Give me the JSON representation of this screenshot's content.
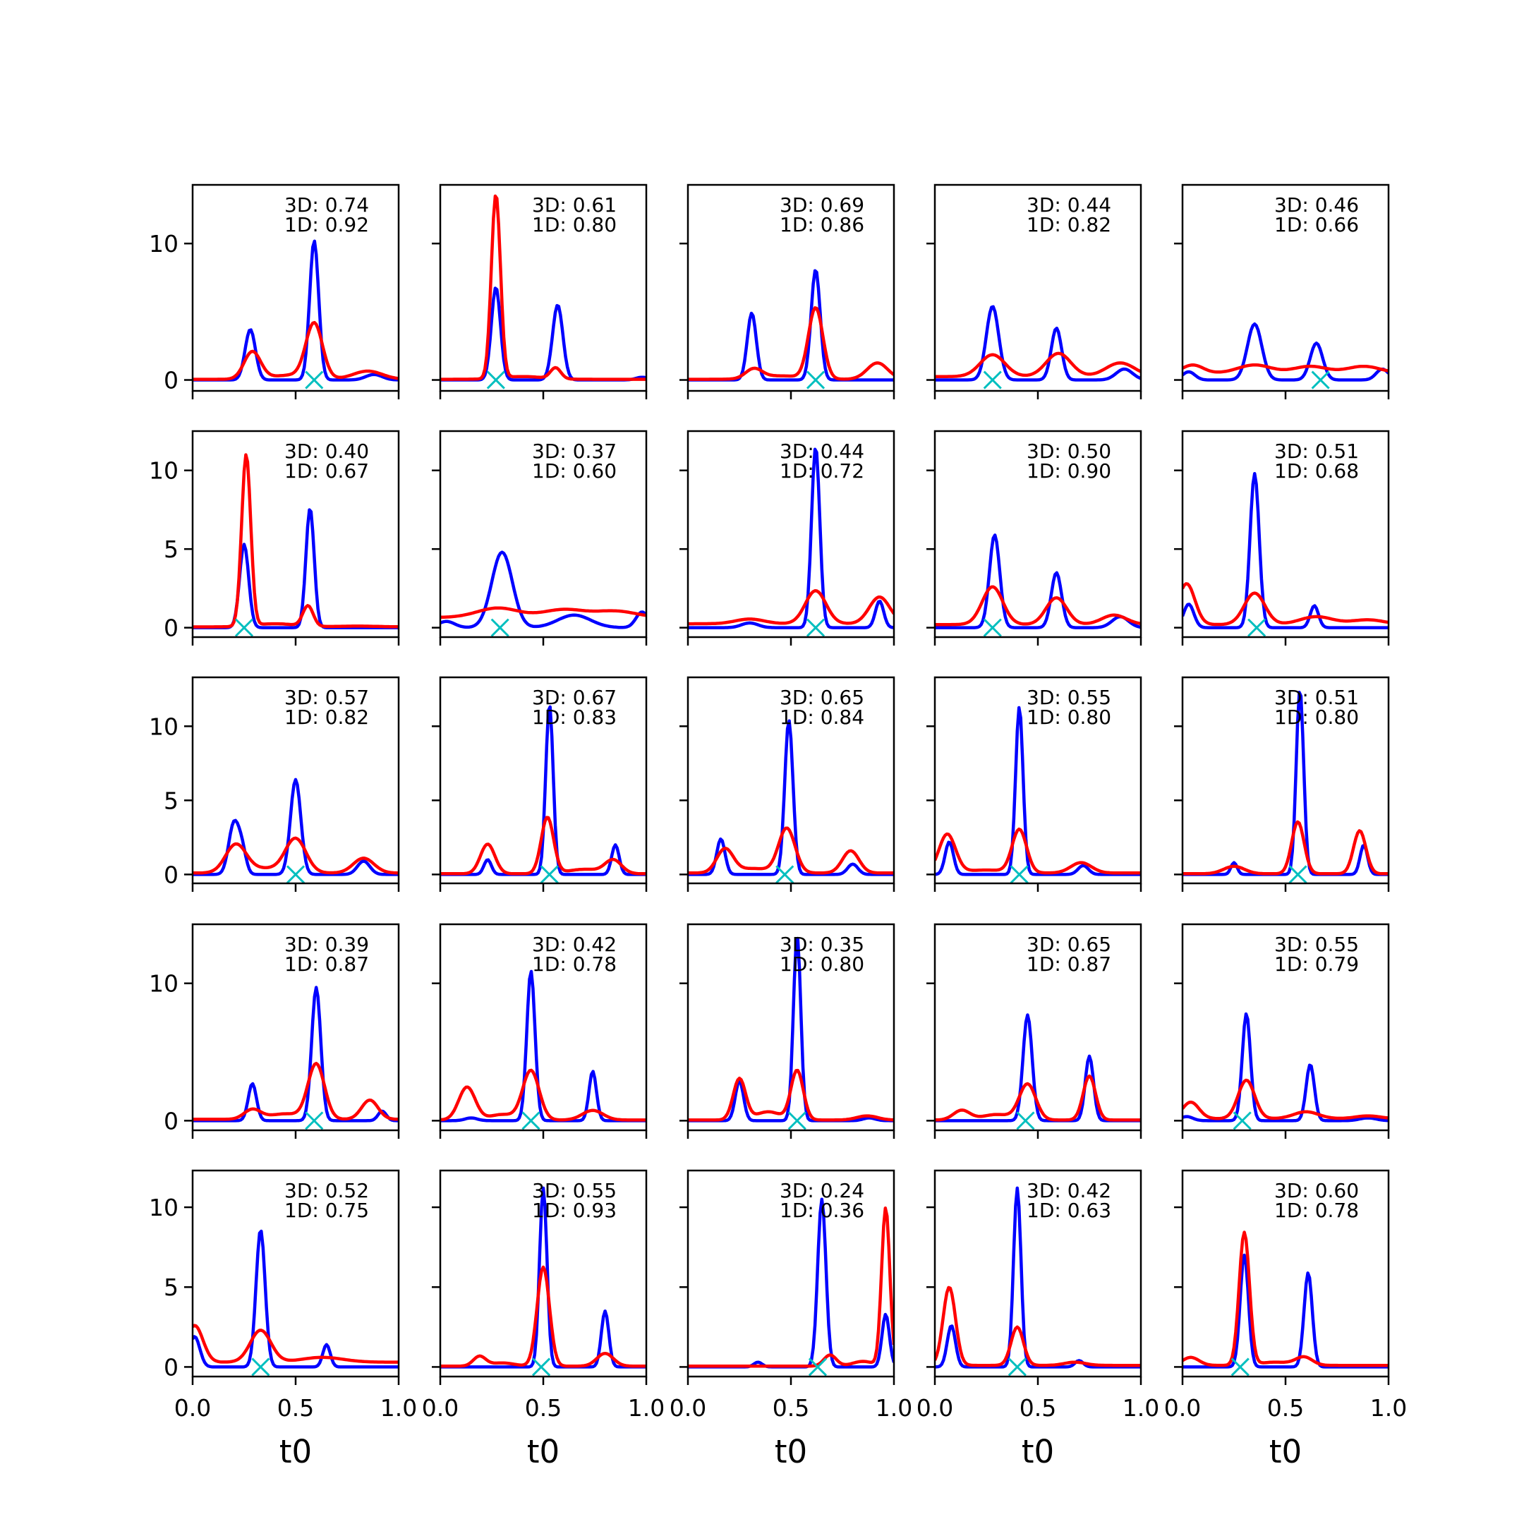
{
  "chart_data": {
    "type": "line",
    "layout": "5x5 grid of subplots",
    "shared_axes": {
      "xlabel": "t0",
      "xlim": [
        0,
        1
      ],
      "xticks": [
        "0.0",
        "0.5",
        "1.0"
      ],
      "ylabel": "",
      "grid": false,
      "legend": "none"
    },
    "rows": [
      {
        "ylim": [
          -0.8,
          14.3
        ],
        "yticks": [
          "0",
          "10"
        ],
        "ytick_values": [
          0,
          10
        ]
      },
      {
        "ylim": [
          -0.6,
          12.5
        ],
        "yticks": [
          "0",
          "5",
          "10"
        ],
        "ytick_values": [
          0,
          5,
          10
        ]
      },
      {
        "ylim": [
          -0.6,
          13.3
        ],
        "yticks": [
          "0",
          "5",
          "10"
        ],
        "ytick_values": [
          0,
          5,
          10
        ]
      },
      {
        "ylim": [
          -0.7,
          14.3
        ],
        "yticks": [
          "0",
          "10"
        ],
        "ytick_values": [
          0,
          10
        ]
      },
      {
        "ylim": [
          -0.6,
          12.3
        ],
        "yticks": [
          "0",
          "5",
          "10"
        ],
        "ytick_values": [
          0,
          5,
          10
        ]
      }
    ],
    "series_styles": {
      "3D": "#0000ff",
      "1D": "#ff0000",
      "marker": "#00bfbf"
    },
    "panels": [
      {
        "annotation": [
          "3D: 0.74",
          "1D: 0.92"
        ],
        "marker_x": 0.59,
        "blue": [
          [
            0.28,
            3.7,
            0.025
          ],
          [
            0.59,
            10.2,
            0.022
          ],
          [
            0.88,
            0.4,
            0.04
          ]
        ],
        "red": [
          [
            0.29,
            2.0,
            0.04
          ],
          [
            0.59,
            4.0,
            0.04
          ],
          [
            0.85,
            0.6,
            0.07
          ],
          [
            0.48,
            0.3,
            0.1
          ]
        ],
        "red_base": 0.05
      },
      {
        "annotation": [
          "3D: 0.61",
          "1D: 0.80"
        ],
        "marker_x": 0.27,
        "blue": [
          [
            0.27,
            6.8,
            0.022
          ],
          [
            0.57,
            5.5,
            0.025
          ],
          [
            0.98,
            0.2,
            0.03
          ]
        ],
        "red": [
          [
            0.27,
            13.5,
            0.022
          ],
          [
            0.56,
            0.8,
            0.025
          ],
          [
            0.4,
            0.2,
            0.1
          ]
        ],
        "red_base": 0.05
      },
      {
        "annotation": [
          "3D: 0.69",
          "1D: 0.86"
        ],
        "marker_x": 0.62,
        "blue": [
          [
            0.31,
            4.9,
            0.022
          ],
          [
            0.62,
            8.1,
            0.022
          ]
        ],
        "red": [
          [
            0.32,
            0.7,
            0.04
          ],
          [
            0.62,
            5.2,
            0.035
          ],
          [
            0.92,
            1.2,
            0.05
          ],
          [
            0.45,
            0.25,
            0.1
          ]
        ],
        "red_base": 0.05
      },
      {
        "annotation": [
          "3D: 0.44",
          "1D: 0.82"
        ],
        "marker_x": 0.28,
        "blue": [
          [
            0.28,
            5.4,
            0.03
          ],
          [
            0.59,
            3.8,
            0.025
          ],
          [
            0.92,
            0.8,
            0.04
          ]
        ],
        "red": [
          [
            0.28,
            1.6,
            0.06
          ],
          [
            0.6,
            1.7,
            0.06
          ],
          [
            0.9,
            1.0,
            0.07
          ]
        ],
        "red_base": 0.25
      },
      {
        "annotation": [
          "3D: 0.46",
          "1D: 0.66"
        ],
        "marker_x": 0.67,
        "blue": [
          [
            0.35,
            4.1,
            0.035
          ],
          [
            0.65,
            2.7,
            0.03
          ],
          [
            0.97,
            0.8,
            0.03
          ],
          [
            0.03,
            0.6,
            0.03
          ]
        ],
        "red": [
          [
            0.05,
            0.6,
            0.05
          ],
          [
            0.35,
            0.6,
            0.08
          ],
          [
            0.62,
            0.5,
            0.08
          ],
          [
            0.88,
            0.5,
            0.08
          ]
        ],
        "red_base": 0.5
      },
      {
        "annotation": [
          "3D: 0.40",
          "1D: 0.67"
        ],
        "marker_x": 0.25,
        "blue": [
          [
            0.25,
            5.3,
            0.022
          ],
          [
            0.57,
            7.6,
            0.02
          ]
        ],
        "red": [
          [
            0.26,
            10.9,
            0.022
          ],
          [
            0.56,
            1.3,
            0.025
          ],
          [
            0.4,
            0.2,
            0.1
          ],
          [
            0.8,
            0.05,
            0.1
          ]
        ],
        "red_base": 0.05
      },
      {
        "annotation": [
          "3D: 0.37",
          "1D: 0.60"
        ],
        "marker_x": 0.29,
        "blue": [
          [
            0.3,
            4.8,
            0.05
          ],
          [
            0.65,
            0.8,
            0.08
          ],
          [
            0.98,
            1.0,
            0.03
          ],
          [
            0.03,
            0.4,
            0.04
          ]
        ],
        "red": [
          [
            0.28,
            0.6,
            0.1
          ],
          [
            0.6,
            0.5,
            0.1
          ],
          [
            0.85,
            0.4,
            0.1
          ]
        ],
        "red_base": 0.65
      },
      {
        "annotation": [
          "3D: 0.44",
          "1D: 0.72"
        ],
        "marker_x": 0.62,
        "blue": [
          [
            0.62,
            11.5,
            0.02
          ],
          [
            0.93,
            1.7,
            0.02
          ],
          [
            0.3,
            0.3,
            0.04
          ]
        ],
        "red": [
          [
            0.62,
            2.1,
            0.05
          ],
          [
            0.93,
            1.7,
            0.05
          ],
          [
            0.3,
            0.3,
            0.07
          ]
        ],
        "red_base": 0.25
      },
      {
        "annotation": [
          "3D: 0.50",
          "1D: 0.90"
        ],
        "marker_x": 0.28,
        "blue": [
          [
            0.29,
            5.9,
            0.025
          ],
          [
            0.59,
            3.5,
            0.025
          ],
          [
            0.9,
            0.7,
            0.04
          ]
        ],
        "red": [
          [
            0.28,
            2.4,
            0.05
          ],
          [
            0.59,
            1.7,
            0.05
          ],
          [
            0.87,
            0.6,
            0.06
          ]
        ],
        "red_base": 0.2
      },
      {
        "annotation": [
          "3D: 0.51",
          "1D: 0.68"
        ],
        "marker_x": 0.36,
        "blue": [
          [
            0.35,
            9.8,
            0.022
          ],
          [
            0.64,
            1.4,
            0.02
          ],
          [
            0.03,
            1.5,
            0.025
          ]
        ],
        "red": [
          [
            0.02,
            2.6,
            0.04
          ],
          [
            0.35,
            2.0,
            0.05
          ],
          [
            0.65,
            0.5,
            0.08
          ],
          [
            0.9,
            0.3,
            0.08
          ]
        ],
        "red_base": 0.2
      },
      {
        "annotation": [
          "3D: 0.57",
          "1D: 0.82"
        ],
        "marker_x": 0.5,
        "blue": [
          [
            0.2,
            3.4,
            0.025
          ],
          [
            0.24,
            1.5,
            0.02
          ],
          [
            0.5,
            6.4,
            0.025
          ],
          [
            0.83,
            0.9,
            0.03
          ]
        ],
        "red": [
          [
            0.21,
            1.9,
            0.05
          ],
          [
            0.5,
            2.3,
            0.05
          ],
          [
            0.83,
            1.0,
            0.05
          ],
          [
            0.35,
            0.3,
            0.08
          ]
        ],
        "red_base": 0.1
      },
      {
        "annotation": [
          "3D: 0.67",
          "1D: 0.83"
        ],
        "marker_x": 0.53,
        "blue": [
          [
            0.53,
            11.5,
            0.018
          ],
          [
            0.85,
            2.0,
            0.018
          ],
          [
            0.23,
            1.0,
            0.018
          ]
        ],
        "red": [
          [
            0.23,
            2.0,
            0.035
          ],
          [
            0.52,
            3.8,
            0.03
          ],
          [
            0.84,
            0.9,
            0.04
          ],
          [
            0.7,
            0.3,
            0.08
          ]
        ],
        "red_base": 0.05
      },
      {
        "annotation": [
          "3D: 0.65",
          "1D: 0.84"
        ],
        "marker_x": 0.47,
        "blue": [
          [
            0.49,
            10.4,
            0.02
          ],
          [
            0.16,
            2.4,
            0.02
          ],
          [
            0.8,
            0.7,
            0.025
          ]
        ],
        "red": [
          [
            0.18,
            1.6,
            0.04
          ],
          [
            0.48,
            3.0,
            0.04
          ],
          [
            0.79,
            1.5,
            0.04
          ],
          [
            0.32,
            0.3,
            0.08
          ]
        ],
        "red_base": 0.1
      },
      {
        "annotation": [
          "3D: 0.55",
          "1D: 0.80"
        ],
        "marker_x": 0.41,
        "blue": [
          [
            0.41,
            11.3,
            0.018
          ],
          [
            0.07,
            2.2,
            0.02
          ],
          [
            0.72,
            0.6,
            0.025
          ]
        ],
        "red": [
          [
            0.06,
            2.6,
            0.04
          ],
          [
            0.41,
            2.9,
            0.035
          ],
          [
            0.71,
            0.7,
            0.05
          ],
          [
            0.25,
            0.2,
            0.1
          ]
        ],
        "red_base": 0.1
      },
      {
        "annotation": [
          "3D: 0.51",
          "1D: 0.80"
        ],
        "marker_x": 0.56,
        "blue": [
          [
            0.57,
            12.5,
            0.018
          ],
          [
            0.88,
            2.0,
            0.018
          ],
          [
            0.25,
            0.8,
            0.015
          ]
        ],
        "red": [
          [
            0.56,
            3.5,
            0.03
          ],
          [
            0.86,
            2.9,
            0.03
          ],
          [
            0.25,
            0.5,
            0.05
          ]
        ],
        "red_base": 0.05
      },
      {
        "annotation": [
          "3D: 0.39",
          "1D: 0.87"
        ],
        "marker_x": 0.59,
        "blue": [
          [
            0.6,
            9.7,
            0.022
          ],
          [
            0.29,
            2.7,
            0.02
          ],
          [
            0.92,
            0.7,
            0.02
          ]
        ],
        "red": [
          [
            0.29,
            0.7,
            0.04
          ],
          [
            0.6,
            4.0,
            0.04
          ],
          [
            0.86,
            1.4,
            0.04
          ],
          [
            0.45,
            0.4,
            0.08
          ]
        ],
        "red_base": 0.1
      },
      {
        "annotation": [
          "3D: 0.42",
          "1D: 0.78"
        ],
        "marker_x": 0.44,
        "blue": [
          [
            0.44,
            10.9,
            0.02
          ],
          [
            0.74,
            3.6,
            0.018
          ],
          [
            0.15,
            0.2,
            0.03
          ]
        ],
        "red": [
          [
            0.13,
            2.4,
            0.04
          ],
          [
            0.44,
            3.6,
            0.04
          ],
          [
            0.74,
            0.7,
            0.05
          ],
          [
            0.3,
            0.4,
            0.06
          ]
        ],
        "red_base": 0.05
      },
      {
        "annotation": [
          "3D: 0.35",
          "1D: 0.80"
        ],
        "marker_x": 0.53,
        "blue": [
          [
            0.53,
            13.5,
            0.018
          ],
          [
            0.25,
            2.9,
            0.02
          ],
          [
            0.88,
            0.2,
            0.03
          ]
        ],
        "red": [
          [
            0.25,
            3.0,
            0.03
          ],
          [
            0.53,
            3.6,
            0.03
          ],
          [
            0.87,
            0.3,
            0.05
          ],
          [
            0.39,
            0.6,
            0.06
          ]
        ],
        "red_base": 0.05
      },
      {
        "annotation": [
          "3D: 0.65",
          "1D: 0.87"
        ],
        "marker_x": 0.44,
        "blue": [
          [
            0.45,
            7.7,
            0.022
          ],
          [
            0.75,
            4.7,
            0.02
          ]
        ],
        "red": [
          [
            0.13,
            0.7,
            0.04
          ],
          [
            0.45,
            2.6,
            0.04
          ],
          [
            0.75,
            3.2,
            0.03
          ],
          [
            0.3,
            0.4,
            0.07
          ]
        ],
        "red_base": 0.05
      },
      {
        "annotation": [
          "3D: 0.55",
          "1D: 0.79"
        ],
        "marker_x": 0.29,
        "blue": [
          [
            0.31,
            7.8,
            0.02
          ],
          [
            0.62,
            4.1,
            0.02
          ],
          [
            0.02,
            0.3,
            0.03
          ],
          [
            0.9,
            0.2,
            0.04
          ]
        ],
        "red": [
          [
            0.04,
            1.2,
            0.04
          ],
          [
            0.31,
            2.8,
            0.04
          ],
          [
            0.6,
            0.5,
            0.06
          ],
          [
            0.9,
            0.2,
            0.06
          ]
        ],
        "red_base": 0.15
      },
      {
        "annotation": [
          "3D: 0.52",
          "1D: 0.75"
        ],
        "marker_x": 0.33,
        "blue": [
          [
            0.33,
            8.6,
            0.022
          ],
          [
            0.65,
            1.4,
            0.018
          ],
          [
            0.01,
            1.9,
            0.025
          ]
        ],
        "red": [
          [
            0.01,
            2.3,
            0.04
          ],
          [
            0.33,
            2.0,
            0.05
          ],
          [
            0.63,
            0.3,
            0.1
          ]
        ],
        "red_base": 0.3
      },
      {
        "annotation": [
          "3D: 0.55",
          "1D: 0.93"
        ],
        "marker_x": 0.49,
        "blue": [
          [
            0.5,
            11.2,
            0.018
          ],
          [
            0.8,
            3.5,
            0.018
          ]
        ],
        "red": [
          [
            0.19,
            0.6,
            0.03
          ],
          [
            0.5,
            6.2,
            0.03
          ],
          [
            0.8,
            0.8,
            0.04
          ],
          [
            0.3,
            0.2,
            0.06
          ]
        ],
        "red_base": 0.05
      },
      {
        "annotation": [
          "3D: 0.24",
          "1D: 0.36"
        ],
        "marker_x": 0.63,
        "blue": [
          [
            0.65,
            10.5,
            0.02
          ],
          [
            0.34,
            0.3,
            0.02
          ],
          [
            0.96,
            3.3,
            0.018
          ]
        ],
        "red": [
          [
            0.96,
            9.9,
            0.02
          ],
          [
            0.69,
            0.7,
            0.03
          ],
          [
            0.85,
            0.3,
            0.05
          ]
        ],
        "red_base": 0.05
      },
      {
        "annotation": [
          "3D: 0.42",
          "1D: 0.63"
        ],
        "marker_x": 0.4,
        "blue": [
          [
            0.4,
            11.2,
            0.018
          ],
          [
            0.08,
            2.6,
            0.02
          ],
          [
            0.7,
            0.4,
            0.02
          ]
        ],
        "red": [
          [
            0.07,
            4.9,
            0.03
          ],
          [
            0.4,
            2.4,
            0.03
          ],
          [
            0.68,
            0.2,
            0.05
          ]
        ],
        "red_base": 0.1
      },
      {
        "annotation": [
          "3D: 0.60",
          "1D: 0.78"
        ],
        "marker_x": 0.28,
        "blue": [
          [
            0.3,
            7.0,
            0.02
          ],
          [
            0.61,
            5.9,
            0.02
          ]
        ],
        "red": [
          [
            0.3,
            8.3,
            0.025
          ],
          [
            0.59,
            0.5,
            0.04
          ],
          [
            0.04,
            0.5,
            0.04
          ],
          [
            0.45,
            0.2,
            0.08
          ]
        ],
        "red_base": 0.1
      }
    ]
  }
}
